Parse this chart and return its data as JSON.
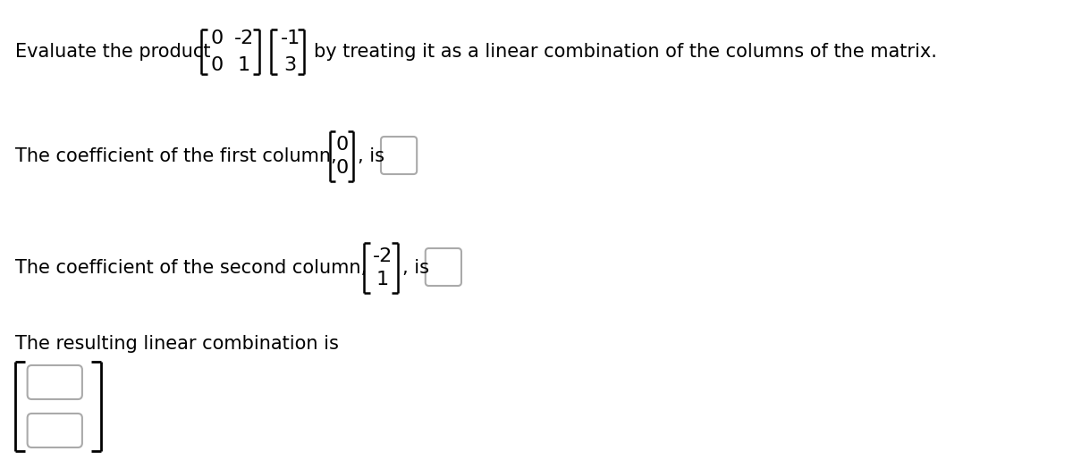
{
  "bg_color": "#ffffff",
  "text_color": "#000000",
  "font_size_main": 15,
  "font_size_matrix": 16,
  "line1_text_left": "Evaluate the product",
  "line1_text_right": "by treating it as a linear combination of the columns of the matrix.",
  "line2_text": "The coefficient of the first column,",
  "line3_text": "The coefficient of the second column,",
  "line4_text": "The resulting linear combination is",
  "matrix_A_r1": [
    "0",
    "-2"
  ],
  "matrix_A_r2": [
    "0",
    "1"
  ],
  "vector_b": [
    "-1",
    "3"
  ],
  "col1": [
    "0",
    "0"
  ],
  "col2": [
    "-2",
    "1"
  ]
}
